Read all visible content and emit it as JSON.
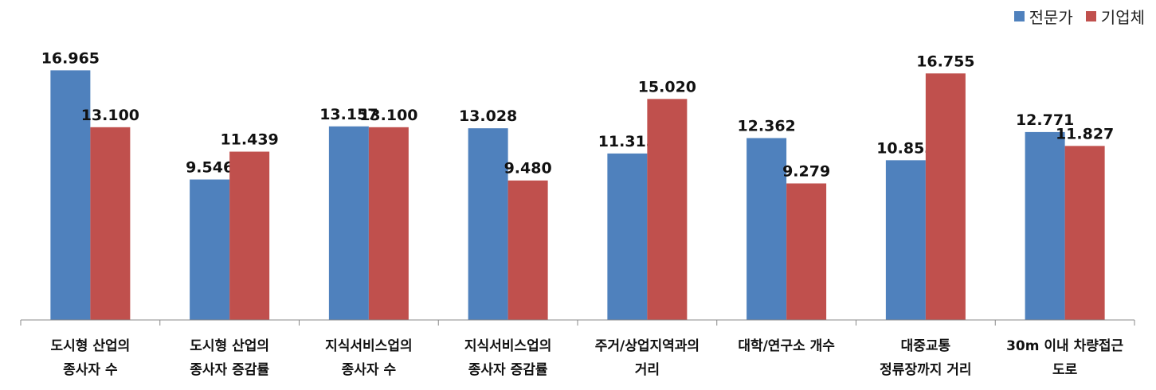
{
  "chart_data": {
    "type": "bar",
    "categories": [
      [
        "도시형 산업의",
        "종사자 수"
      ],
      [
        "도시형 산업의",
        "종사자 증감률"
      ],
      [
        "지식서비스업의",
        "종사자 수"
      ],
      [
        "지식서비스업의",
        "종사자 증감률"
      ],
      [
        "주거/상업지역과의",
        "거리"
      ],
      [
        "대학/연구소 개수"
      ],
      [
        "대중교통",
        "정류장까지 거리"
      ],
      [
        "30m 이내 차량접근",
        "도로"
      ]
    ],
    "series": [
      {
        "name": "전문가",
        "color": "#4f81bd",
        "values": [
          16.965,
          9.546,
          13.157,
          13.028,
          11.315,
          12.362,
          10.855,
          12.771
        ],
        "labels": [
          "16.965",
          "9.546",
          "13.157",
          "13.028",
          "11.315",
          "12.362",
          "10.855",
          "12.771"
        ]
      },
      {
        "name": "기업체",
        "color": "#c0504d",
        "values": [
          13.1,
          11.439,
          13.1,
          9.48,
          15.02,
          9.279,
          16.755,
          11.827
        ],
        "labels": [
          "13.100",
          "11.439",
          "13.100",
          "9.480",
          "15.020",
          "9.279",
          "16.755",
          "11.827"
        ]
      }
    ],
    "ylim": [
      0,
      18.5
    ],
    "legend_position": "top-right",
    "grid": false
  }
}
